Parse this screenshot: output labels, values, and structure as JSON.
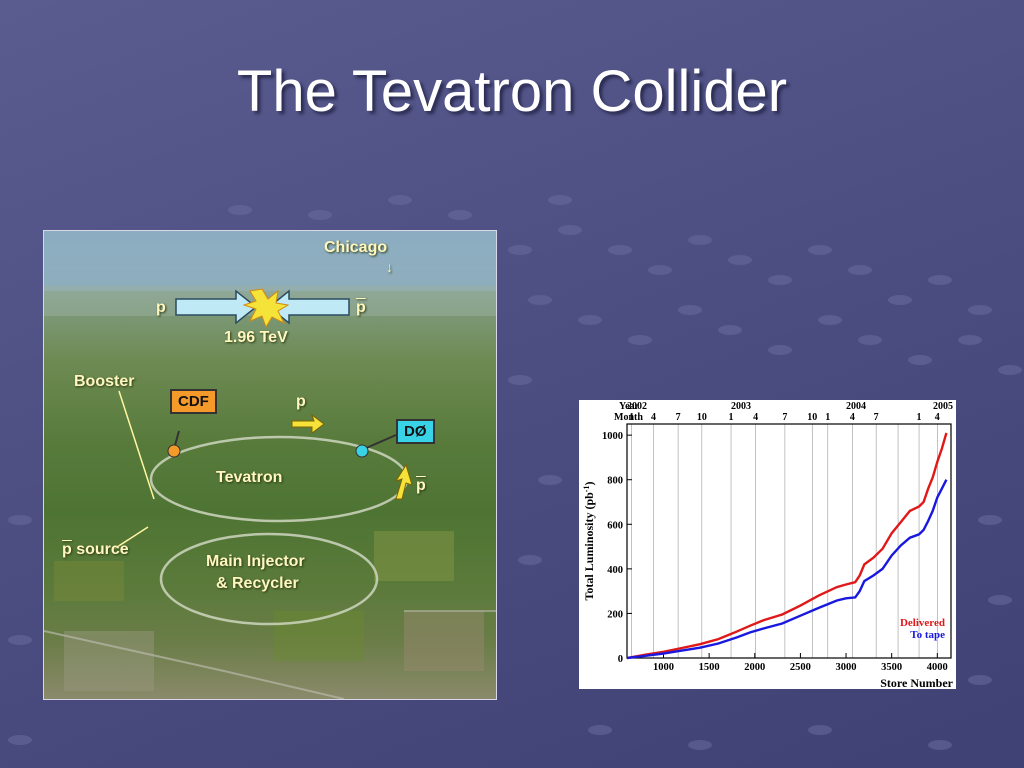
{
  "slide": {
    "title": "The Tevatron Collider"
  },
  "photo": {
    "labels": {
      "chicago": "Chicago",
      "chicago_arrow": "↓",
      "proton": "p",
      "antiproton": "p",
      "energy": "1.96 TeV",
      "booster": "Booster",
      "cdf": "CDF",
      "d0": "DØ",
      "tevatron": "Tevatron",
      "p_source": "p source",
      "main_injector_line1": "Main Injector",
      "main_injector_line2": "& Recycler",
      "beam_p": "p",
      "beam_pbar": "p"
    },
    "colors": {
      "cdf_tag": "#f39a2a",
      "d0_tag": "#39d3e8",
      "beam_arrow": "#bfeaf5",
      "label_text": "#fff6c0"
    }
  },
  "chart_data": {
    "type": "line",
    "xlabel": "Store Number",
    "ylabel": "Total Luminosity (pb",
    "ylabel_sup": "-1",
    "ylabel_close": ")",
    "xlim": [
      600,
      4150
    ],
    "ylim": [
      0,
      1050
    ],
    "xticks": [
      1000,
      1500,
      2000,
      2500,
      3000,
      3500,
      4000
    ],
    "yticks": [
      0,
      200,
      400,
      600,
      800,
      1000
    ],
    "top_axis": {
      "year_label": "Year",
      "month_label": "Month",
      "years": [
        {
          "label": "2002",
          "x": 600
        },
        {
          "label": "2003",
          "x": 1740
        },
        {
          "label": "2004",
          "x": 3000
        },
        {
          "label": "2005",
          "x": 4000
        }
      ],
      "months": [
        {
          "label": "1",
          "x": 650
        },
        {
          "label": "4",
          "x": 890
        },
        {
          "label": "7",
          "x": 1160
        },
        {
          "label": "10",
          "x": 1420
        },
        {
          "label": "1",
          "x": 1740
        },
        {
          "label": "4",
          "x": 2010
        },
        {
          "label": "7",
          "x": 2330
        },
        {
          "label": "10",
          "x": 2630
        },
        {
          "label": "1",
          "x": 2800
        },
        {
          "label": "4",
          "x": 3070
        },
        {
          "label": "7",
          "x": 3330
        },
        {
          "label": "1",
          "x": 3800
        },
        {
          "label": "4",
          "x": 4000
        }
      ],
      "gridlines": [
        650,
        890,
        1160,
        1420,
        1740,
        2010,
        2330,
        2630,
        2800,
        3070,
        3330,
        3570,
        3800,
        4000
      ]
    },
    "series": [
      {
        "name": "Delivered",
        "color": "#e01818",
        "points": [
          [
            600,
            0
          ],
          [
            800,
            15
          ],
          [
            1000,
            28
          ],
          [
            1200,
            45
          ],
          [
            1400,
            62
          ],
          [
            1600,
            85
          ],
          [
            1800,
            118
          ],
          [
            1950,
            145
          ],
          [
            2100,
            170
          ],
          [
            2300,
            195
          ],
          [
            2500,
            235
          ],
          [
            2700,
            280
          ],
          [
            2900,
            318
          ],
          [
            3000,
            330
          ],
          [
            3100,
            340
          ],
          [
            3150,
            370
          ],
          [
            3200,
            420
          ],
          [
            3300,
            450
          ],
          [
            3400,
            490
          ],
          [
            3500,
            560
          ],
          [
            3600,
            610
          ],
          [
            3700,
            660
          ],
          [
            3800,
            680
          ],
          [
            3850,
            700
          ],
          [
            3900,
            760
          ],
          [
            3950,
            810
          ],
          [
            4000,
            880
          ],
          [
            4050,
            940
          ],
          [
            4100,
            1010
          ]
        ]
      },
      {
        "name": "To tape",
        "color": "#1818e0",
        "points": [
          [
            600,
            0
          ],
          [
            800,
            10
          ],
          [
            1000,
            20
          ],
          [
            1200,
            33
          ],
          [
            1400,
            46
          ],
          [
            1600,
            65
          ],
          [
            1800,
            92
          ],
          [
            1950,
            115
          ],
          [
            2100,
            133
          ],
          [
            2300,
            155
          ],
          [
            2500,
            190
          ],
          [
            2700,
            225
          ],
          [
            2900,
            258
          ],
          [
            3000,
            268
          ],
          [
            3100,
            272
          ],
          [
            3150,
            300
          ],
          [
            3200,
            345
          ],
          [
            3300,
            370
          ],
          [
            3400,
            400
          ],
          [
            3500,
            460
          ],
          [
            3600,
            505
          ],
          [
            3700,
            540
          ],
          [
            3800,
            555
          ],
          [
            3850,
            575
          ],
          [
            3900,
            615
          ],
          [
            3950,
            660
          ],
          [
            4000,
            720
          ],
          [
            4050,
            760
          ],
          [
            4100,
            800
          ]
        ]
      }
    ]
  }
}
